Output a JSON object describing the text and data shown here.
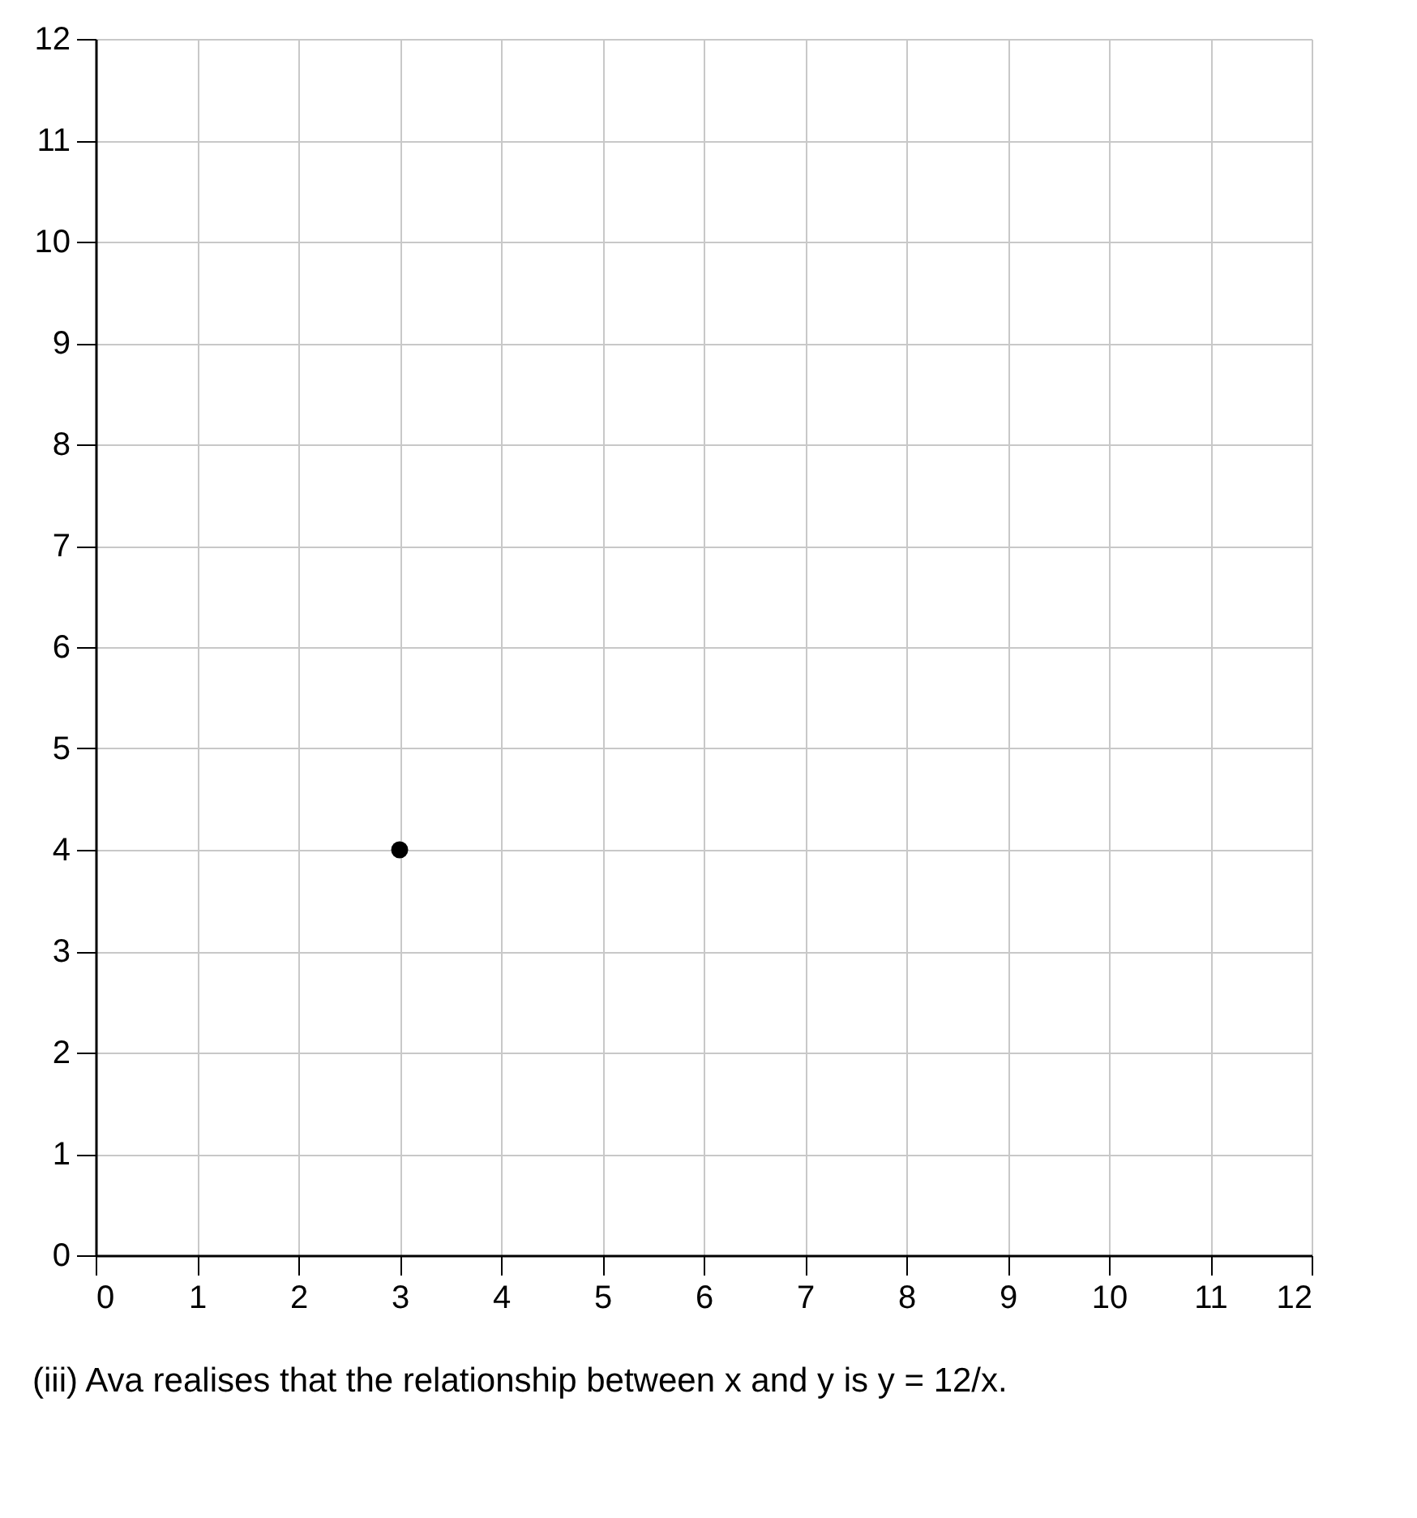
{
  "chart_data": {
    "type": "scatter",
    "x": [
      3
    ],
    "values": [
      4
    ],
    "color": "#000000",
    "marker": "circle",
    "xlim": [
      0,
      12
    ],
    "ylim": [
      0,
      12
    ],
    "xticks": [
      0,
      1,
      2,
      3,
      4,
      5,
      6,
      7,
      8,
      9,
      10,
      11,
      12
    ],
    "yticks": [
      0,
      1,
      2,
      3,
      4,
      5,
      6,
      7,
      8,
      9,
      10,
      11,
      12
    ],
    "grid": true,
    "annotations": [
      "(iii) Ava realises that the relationship between x and y is y = 12/x."
    ]
  }
}
